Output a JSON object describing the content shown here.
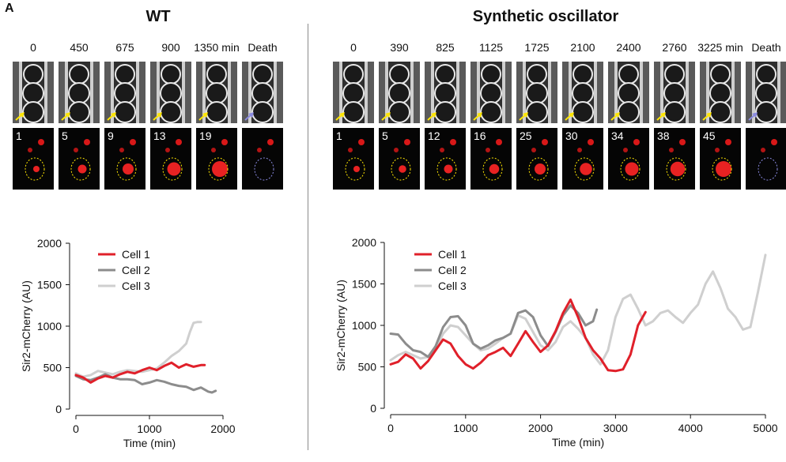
{
  "panel_letter": "A",
  "wt": {
    "title": "WT",
    "time_labels": [
      "0",
      "450",
      "675",
      "900",
      "1350 min",
      "Death"
    ],
    "cell_counts": [
      "1",
      "5",
      "9",
      "13",
      "19",
      ""
    ]
  },
  "synthetic": {
    "title": "Synthetic oscillator",
    "time_labels": [
      "0",
      "390",
      "825",
      "1125",
      "1725",
      "2100",
      "2400",
      "2760",
      "3225 min",
      "Death"
    ],
    "cell_counts": [
      "1",
      "5",
      "12",
      "16",
      "25",
      "30",
      "34",
      "38",
      "45",
      ""
    ]
  },
  "colors": {
    "cell1": "#e0202a",
    "cell2": "#8c8c8c",
    "cell3": "#cfcfcf"
  },
  "chart_data": [
    {
      "type": "line",
      "xlabel": "Time (min)",
      "ylabel": "Sir2-mCherry (AU)",
      "xlim": [
        0,
        2000
      ],
      "ylim": [
        0,
        2000
      ],
      "xticks": [
        "0",
        "1000",
        "2000"
      ],
      "yticks": [
        "0",
        "500",
        "1000",
        "1500",
        "2000"
      ],
      "legend": "top-left",
      "series": [
        {
          "name": "Cell 1",
          "x": [
            0,
            100,
            200,
            300,
            400,
            500,
            600,
            700,
            800,
            900,
            1000,
            1100,
            1200,
            1300,
            1400,
            1500,
            1600,
            1700,
            1750
          ],
          "y": [
            410,
            380,
            320,
            370,
            400,
            380,
            420,
            450,
            430,
            470,
            500,
            470,
            520,
            560,
            500,
            540,
            510,
            530,
            530
          ]
        },
        {
          "name": "Cell 2",
          "x": [
            0,
            100,
            200,
            300,
            400,
            500,
            600,
            700,
            800,
            900,
            1000,
            1100,
            1200,
            1300,
            1400,
            1500,
            1600,
            1700,
            1800,
            1850,
            1900
          ],
          "y": [
            400,
            360,
            350,
            380,
            420,
            380,
            360,
            360,
            350,
            300,
            320,
            350,
            330,
            300,
            280,
            270,
            230,
            260,
            210,
            200,
            220
          ]
        },
        {
          "name": "Cell 3",
          "x": [
            0,
            100,
            200,
            300,
            400,
            500,
            600,
            700,
            800,
            900,
            1000,
            1100,
            1200,
            1300,
            1400,
            1500,
            1550,
            1600,
            1650,
            1700
          ],
          "y": [
            430,
            390,
            410,
            460,
            440,
            420,
            450,
            470,
            460,
            450,
            470,
            490,
            560,
            640,
            700,
            790,
            930,
            1040,
            1050,
            1050
          ]
        }
      ]
    },
    {
      "type": "line",
      "xlabel": "Time (min)",
      "ylabel": "Sir2-mCherry (AU)",
      "xlim": [
        0,
        5000
      ],
      "ylim": [
        0,
        2000
      ],
      "xticks": [
        "0",
        "1000",
        "2000",
        "3000",
        "4000",
        "5000"
      ],
      "yticks": [
        "0",
        "500",
        "1000",
        "1500",
        "2000"
      ],
      "legend": "top-left",
      "series": [
        {
          "name": "Cell 1",
          "x": [
            0,
            100,
            200,
            300,
            400,
            500,
            600,
            700,
            800,
            900,
            1000,
            1100,
            1200,
            1300,
            1400,
            1500,
            1600,
            1700,
            1800,
            1900,
            2000,
            2100,
            2200,
            2300,
            2400,
            2500,
            2600,
            2700,
            2800,
            2900,
            3000,
            3100,
            3200,
            3300,
            3400
          ],
          "y": [
            530,
            560,
            650,
            600,
            480,
            570,
            700,
            830,
            780,
            630,
            530,
            480,
            550,
            640,
            680,
            730,
            630,
            780,
            930,
            800,
            680,
            760,
            930,
            1150,
            1310,
            1100,
            850,
            700,
            600,
            460,
            450,
            470,
            650,
            1000,
            1160
          ]
        },
        {
          "name": "Cell 2",
          "x": [
            0,
            100,
            200,
            300,
            400,
            500,
            600,
            700,
            800,
            900,
            1000,
            1100,
            1200,
            1300,
            1400,
            1500,
            1600,
            1700,
            1800,
            1900,
            2000,
            2100,
            2200,
            2300,
            2400,
            2500,
            2600,
            2700,
            2750
          ],
          "y": [
            900,
            890,
            780,
            700,
            680,
            620,
            750,
            980,
            1100,
            1110,
            1000,
            780,
            720,
            760,
            820,
            850,
            900,
            1150,
            1180,
            1100,
            880,
            750,
            920,
            1120,
            1240,
            1150,
            1000,
            1050,
            1190
          ]
        },
        {
          "name": "Cell 3",
          "x": [
            0,
            100,
            200,
            300,
            400,
            500,
            600,
            700,
            800,
            900,
            1000,
            1100,
            1200,
            1300,
            1400,
            1500,
            1600,
            1700,
            1800,
            1900,
            2000,
            2100,
            2200,
            2300,
            2400,
            2500,
            2600,
            2700,
            2800,
            2900,
            3000,
            3100,
            3200,
            3300,
            3400,
            3500,
            3600,
            3700,
            3800,
            3900,
            4000,
            4100,
            4200,
            4300,
            4400,
            4500,
            4600,
            4700,
            4800,
            4900,
            5000
          ],
          "y": [
            580,
            640,
            680,
            640,
            600,
            620,
            720,
            900,
            1000,
            980,
            880,
            780,
            700,
            720,
            780,
            850,
            900,
            1120,
            1080,
            920,
            760,
            700,
            800,
            980,
            1050,
            960,
            850,
            650,
            530,
            700,
            1100,
            1320,
            1370,
            1200,
            1000,
            1050,
            1150,
            1180,
            1100,
            1030,
            1150,
            1250,
            1500,
            1650,
            1450,
            1200,
            1100,
            950,
            980,
            1400,
            1850
          ]
        }
      ]
    }
  ]
}
